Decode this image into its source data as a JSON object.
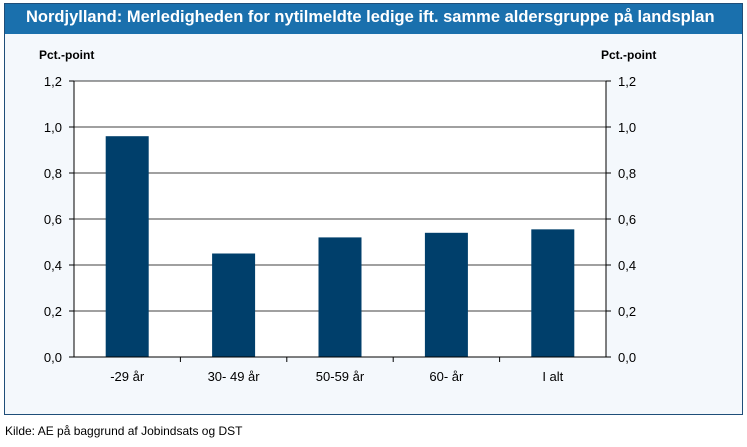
{
  "chart_data": {
    "type": "bar",
    "title": "Nordjylland: Merledigheden for nytilmeldte ledige ift. samme aldersgruppe på landsplan",
    "ylabel_left": "Pct.-point",
    "ylabel_right": "Pct.-point",
    "categories": [
      "-29 år",
      "30- 49 år",
      "50-59 år",
      "60- år",
      "I alt"
    ],
    "values": [
      0.96,
      0.45,
      0.52,
      0.54,
      0.555
    ],
    "ylim": [
      0.0,
      1.2
    ],
    "yticks": [
      "0,0",
      "0,2",
      "0,4",
      "0,6",
      "0,8",
      "1,0",
      "1,2"
    ],
    "ytick_values": [
      0.0,
      0.2,
      0.4,
      0.6,
      0.8,
      1.0,
      1.2
    ],
    "grid": true,
    "bar_color": "#003f6b",
    "grid_color": "#000000",
    "background_color": "#ffffff"
  },
  "source": "Kilde: AE på baggrund af Jobindsats og DST",
  "colors": {
    "title_bar": "#1a70ad",
    "frame_bg": "#f4f8fc"
  }
}
